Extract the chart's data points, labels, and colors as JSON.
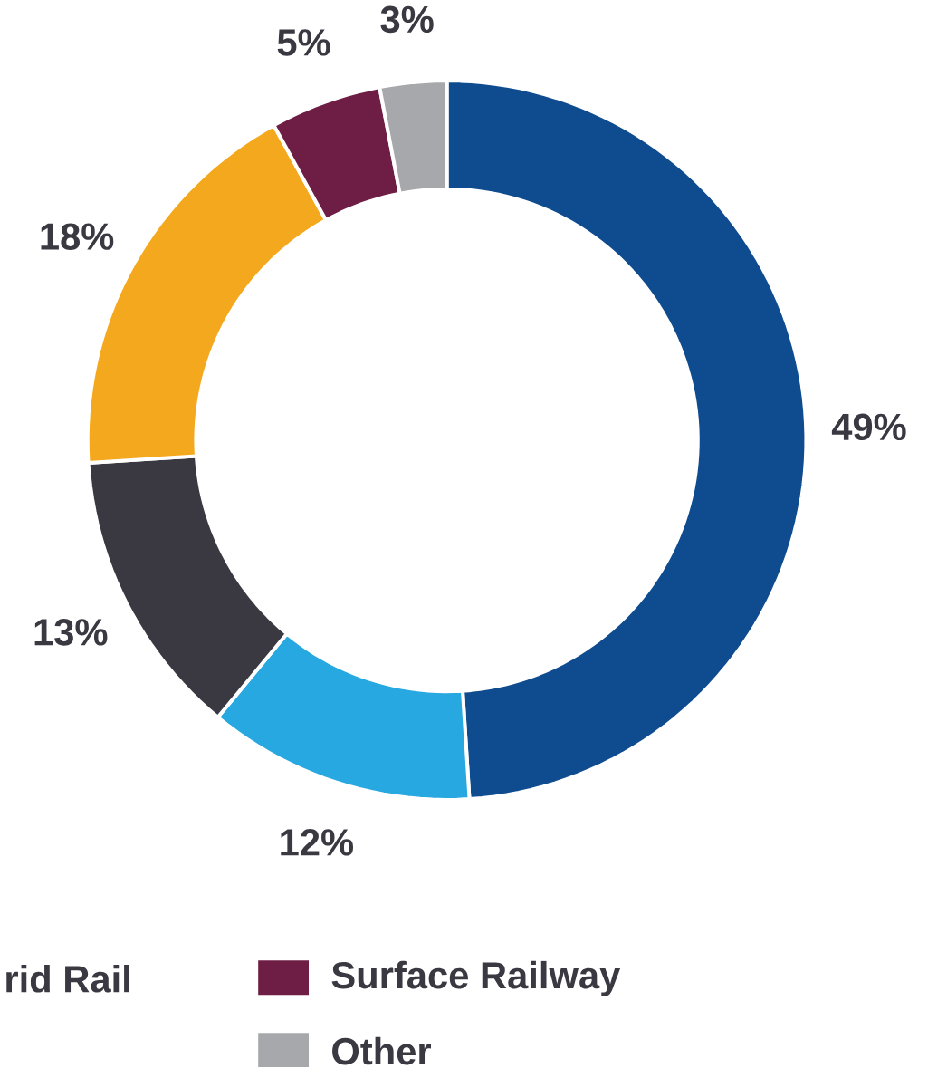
{
  "chart_data": {
    "type": "donut",
    "categories": [
      null,
      null,
      null,
      null,
      "Surface Railway",
      "Other"
    ],
    "values": [
      49,
      12,
      13,
      18,
      5,
      3
    ],
    "value_labels": [
      "49%",
      "12%",
      "13%",
      "18%",
      "5%",
      "3%"
    ],
    "colors": [
      "#0f4c8f",
      "#27a8e0",
      "#3a3942",
      "#f4a81d",
      "#6e1e45",
      "#a7a8ab"
    ],
    "legend": "bottom",
    "annotations": [
      "rid Rail"
    ]
  }
}
